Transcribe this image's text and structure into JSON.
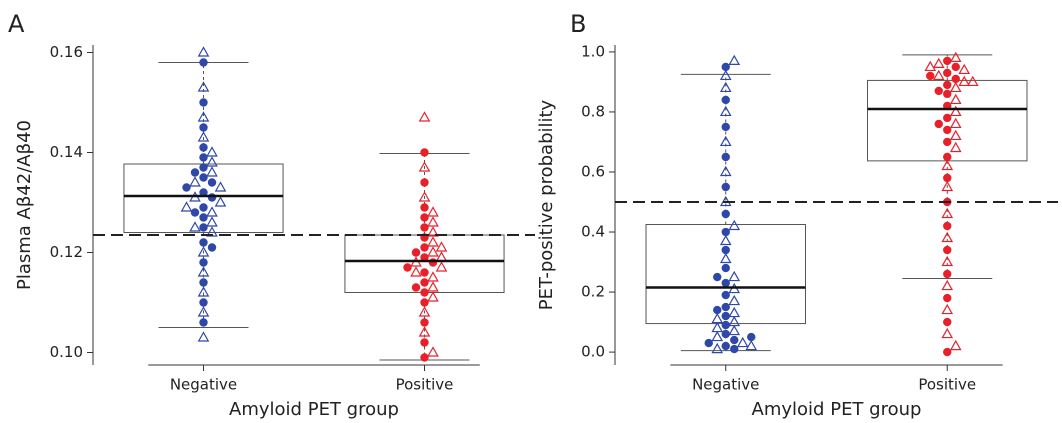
{
  "chart_data": [
    {
      "type": "box",
      "panel": "A",
      "ylabel": "Plasma Aβ42/Aβ40",
      "xlabel": "Amyloid PET group",
      "categories": [
        "Negative",
        "Positive"
      ],
      "ylim": [
        0.0975,
        0.1615
      ],
      "yticks": [
        {
          "value": 0.1,
          "label": "0.10"
        },
        0.12,
        0.14,
        0.16
      ],
      "threshold": 0.1235,
      "boxes": [
        {
          "whislo": 0.105,
          "q1": 0.124,
          "med": 0.1313,
          "q3": 0.1377,
          "whishi": 0.158
        },
        {
          "whislo": 0.0985,
          "q1": 0.112,
          "med": 0.1183,
          "q3": 0.1235,
          "whishi": 0.1398
        }
      ],
      "groups": [
        {
          "color": "#2f47a8",
          "circles": [
            0.158,
            0.15,
            0.145,
            0.141,
            0.139,
            0.137,
            0.135,
            0.134,
            0.132,
            0.131,
            0.129,
            0.127,
            0.125,
            0.122,
            0.118,
            0.114,
            0.11,
            0.106,
            0.133,
            0.128,
            0.121,
            0.136
          ],
          "triangles": [
            0.16,
            0.153,
            0.147,
            0.143,
            0.14,
            0.138,
            0.136,
            0.134,
            0.133,
            0.131,
            0.13,
            0.128,
            0.126,
            0.124,
            0.12,
            0.116,
            0.112,
            0.108,
            0.103,
            0.129,
            0.125
          ]
        },
        {
          "color": "#e8202a",
          "circles": [
            0.14,
            0.134,
            0.129,
            0.127,
            0.125,
            0.123,
            0.121,
            0.119,
            0.118,
            0.116,
            0.114,
            0.112,
            0.11,
            0.106,
            0.102,
            0.099,
            0.12,
            0.117,
            0.113
          ],
          "triangles": [
            0.147,
            0.137,
            0.131,
            0.128,
            0.126,
            0.124,
            0.122,
            0.12,
            0.118,
            0.117,
            0.115,
            0.113,
            0.111,
            0.108,
            0.104,
            0.1,
            0.119,
            0.116,
            0.121
          ]
        }
      ]
    },
    {
      "type": "box",
      "panel": "B",
      "ylabel": "PET-positive probability",
      "xlabel": "Amyloid PET group",
      "categories": [
        "Negative",
        "Positive"
      ],
      "ylim": [
        -0.043,
        1.023
      ],
      "yticks": [
        {
          "value": 0,
          "label": "0.0"
        },
        0.2,
        0.4,
        0.6,
        0.8,
        {
          "value": 1,
          "label": "1.0"
        }
      ],
      "threshold": 0.5,
      "boxes": [
        {
          "whislo": 0.005,
          "q1": 0.095,
          "med": 0.215,
          "q3": 0.425,
          "whishi": 0.925
        },
        {
          "whislo": 0.245,
          "q1": 0.637,
          "med": 0.81,
          "q3": 0.905,
          "whishi": 0.99
        }
      ],
      "groups": [
        {
          "color": "#2f47a8",
          "circles": [
            0.95,
            0.84,
            0.75,
            0.65,
            0.55,
            0.46,
            0.4,
            0.34,
            0.28,
            0.23,
            0.19,
            0.15,
            0.12,
            0.09,
            0.06,
            0.04,
            0.02,
            0.01,
            0.03,
            0.05,
            0.25,
            0.14
          ],
          "triangles": [
            0.97,
            0.92,
            0.88,
            0.8,
            0.7,
            0.6,
            0.5,
            0.42,
            0.37,
            0.31,
            0.25,
            0.21,
            0.17,
            0.13,
            0.1,
            0.08,
            0.05,
            0.03,
            0.01,
            0.02,
            0.11,
            0.07
          ]
        },
        {
          "color": "#e8202a",
          "circles": [
            0.97,
            0.95,
            0.93,
            0.91,
            0.89,
            0.86,
            0.82,
            0.78,
            0.74,
            0.7,
            0.65,
            0.58,
            0.5,
            0.42,
            0.34,
            0.26,
            0.18,
            0.1,
            0.0,
            0.92,
            0.87,
            0.76
          ],
          "triangles": [
            0.98,
            0.96,
            0.94,
            0.92,
            0.9,
            0.88,
            0.84,
            0.8,
            0.76,
            0.72,
            0.68,
            0.62,
            0.55,
            0.46,
            0.38,
            0.3,
            0.22,
            0.14,
            0.06,
            0.02,
            0.95,
            0.9
          ]
        }
      ]
    }
  ]
}
